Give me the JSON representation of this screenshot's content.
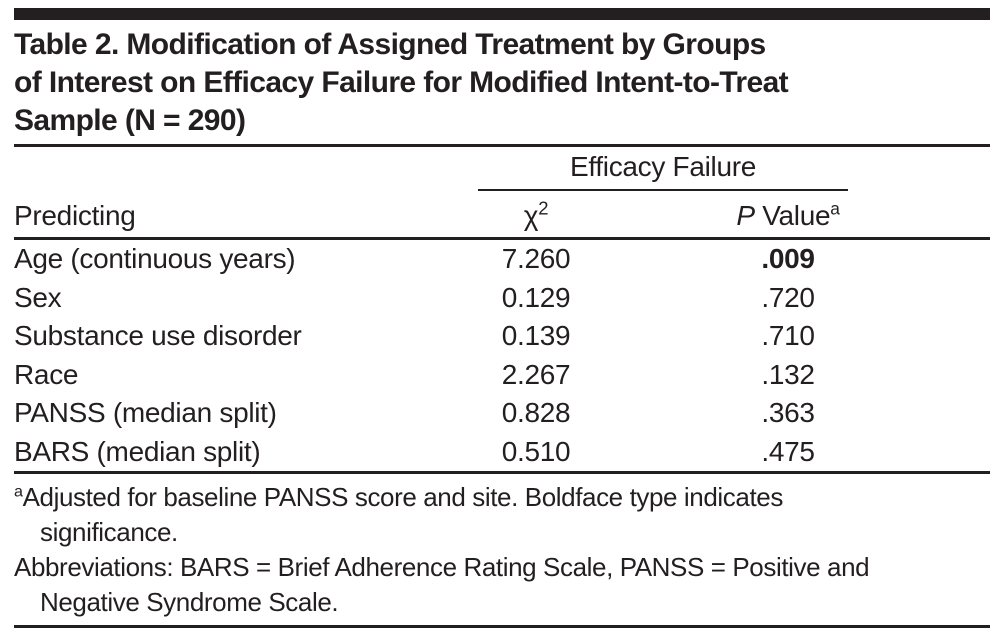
{
  "colors": {
    "ink": "#231f20",
    "background": "#ffffff"
  },
  "table": {
    "title_lines": [
      "Table 2. Modification of Assigned Treatment by Groups",
      "of Interest on Efficacy Failure for Modified Intent-to-Treat",
      "Sample (N = 290)"
    ],
    "header": {
      "spanner": "Efficacy Failure",
      "stub": "Predicting",
      "chi_base": "χ",
      "chi_sup": "2",
      "p_italic": "P",
      "p_rest": " Value",
      "p_sup": "a"
    },
    "rows": [
      {
        "predictor": "Age (continuous years)",
        "chi_square": "7.260",
        "p_value": ".009",
        "p_bold": true
      },
      {
        "predictor": "Sex",
        "chi_square": "0.129",
        "p_value": ".720",
        "p_bold": false
      },
      {
        "predictor": "Substance use disorder",
        "chi_square": "0.139",
        "p_value": ".710",
        "p_bold": false
      },
      {
        "predictor": "Race",
        "chi_square": "2.267",
        "p_value": ".132",
        "p_bold": false
      },
      {
        "predictor": "PANSS (median split)",
        "chi_square": "0.828",
        "p_value": ".363",
        "p_bold": false
      },
      {
        "predictor": "BARS (median split)",
        "chi_square": "0.510",
        "p_value": ".475",
        "p_bold": false
      }
    ],
    "footnote_lines": [
      {
        "sup": "a",
        "text": "Adjusted for baseline PANSS score and site. Boldface type indicates",
        "indent": false
      },
      {
        "sup": "",
        "text": "significance.",
        "indent": true
      },
      {
        "sup": "",
        "text": "Abbreviations: BARS = Brief Adherence Rating Scale, PANSS = Positive and",
        "indent": false
      },
      {
        "sup": "",
        "text": "Negative Syndrome Scale.",
        "indent": true
      }
    ]
  }
}
